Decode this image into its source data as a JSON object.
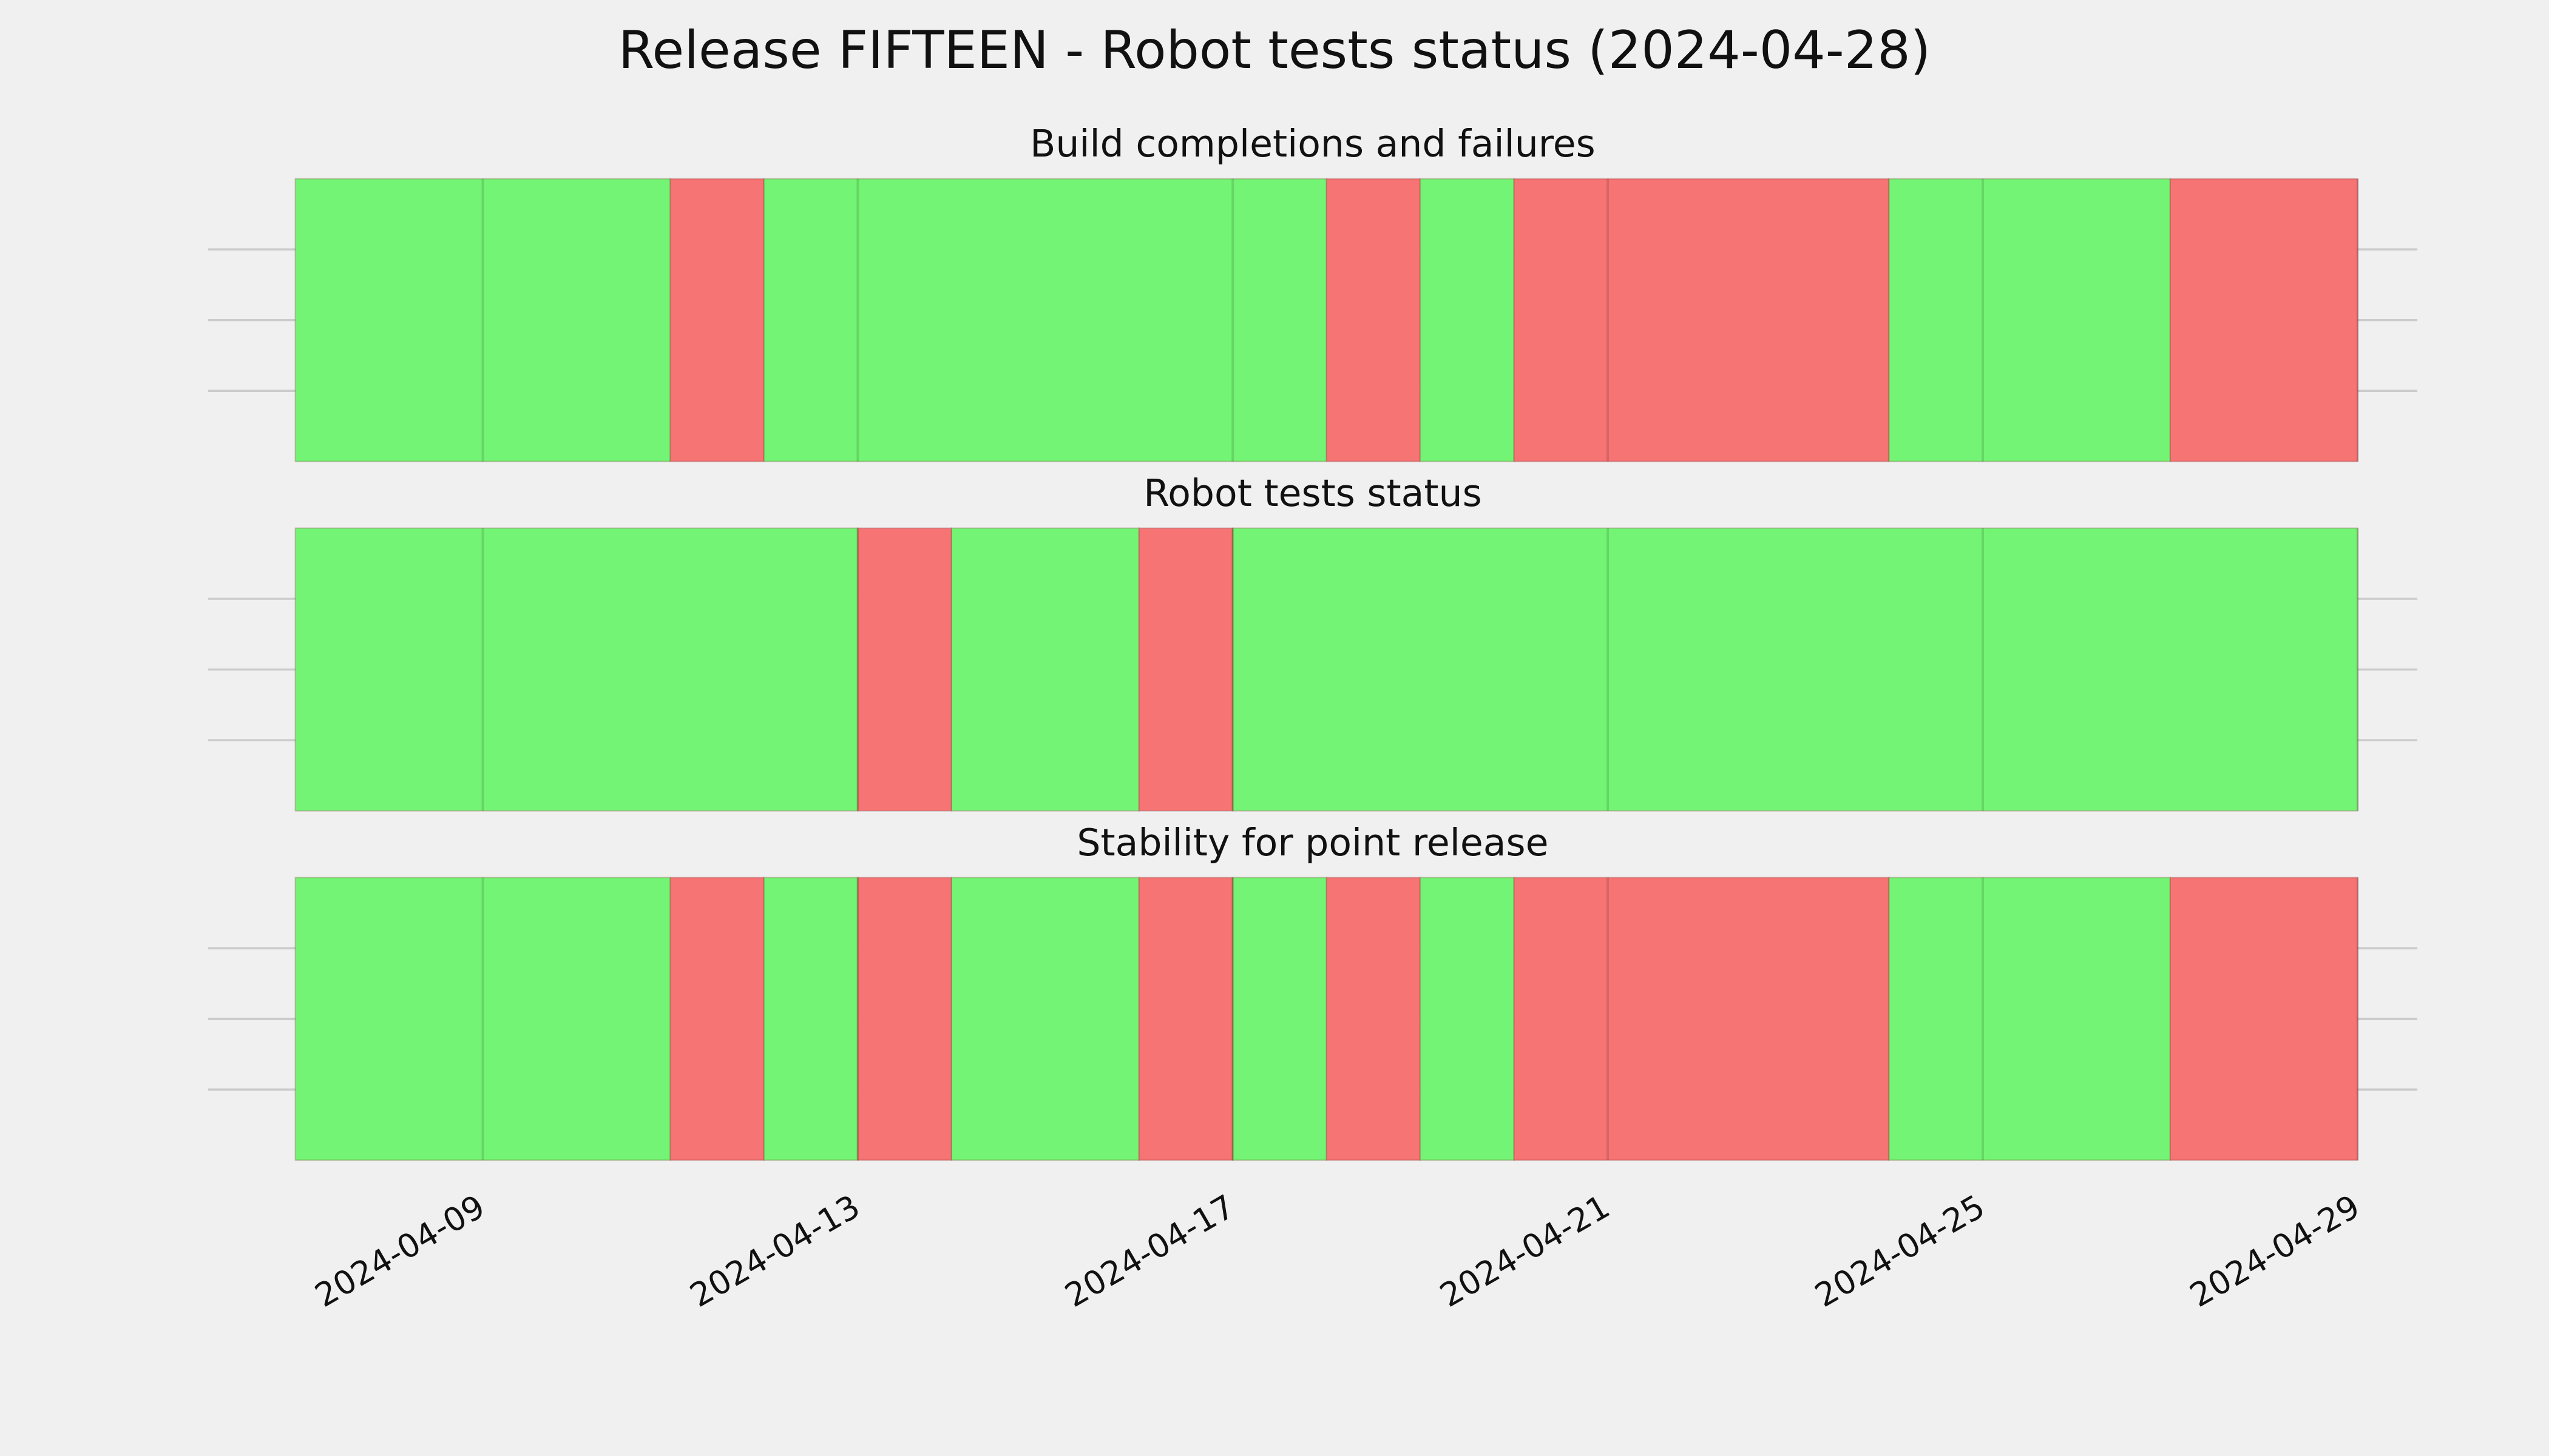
{
  "title": "Release FIFTEEN - Robot tests status (2024-04-28)",
  "chart_data": [
    {
      "type": "timeline",
      "title": "Build completions and failures",
      "x": [
        "2024-04-07",
        "2024-04-11",
        "2024-04-12",
        "2024-04-18",
        "2024-04-19",
        "2024-04-20",
        "2024-04-24",
        "2024-04-27",
        "2024-04-29"
      ],
      "colors": [
        "#74f474",
        "#f67474",
        "#74f474",
        "#f67474",
        "#74f474",
        "#f67474",
        "#74f474",
        "#f67474"
      ],
      "xlim": [
        "2024-04-06",
        "2024-04-30"
      ],
      "xticks": [
        "2024-04-09",
        "2024-04-13",
        "2024-04-17",
        "2024-04-21",
        "2024-04-25",
        "2024-04-29"
      ],
      "ylim": [
        0,
        1
      ],
      "yticks": [
        0.25,
        0.5,
        0.75
      ],
      "grid": true
    },
    {
      "type": "timeline",
      "title": "Robot tests status",
      "x": [
        "2024-04-07",
        "2024-04-13",
        "2024-04-14",
        "2024-04-16",
        "2024-04-17",
        "2024-04-29"
      ],
      "colors": [
        "#74f474",
        "#f67474",
        "#74f474",
        "#f67474",
        "#74f474"
      ],
      "xlim": [
        "2024-04-06",
        "2024-04-30"
      ],
      "xticks": [
        "2024-04-09",
        "2024-04-13",
        "2024-04-17",
        "2024-04-21",
        "2024-04-25",
        "2024-04-29"
      ],
      "ylim": [
        0,
        1
      ],
      "yticks": [
        0.25,
        0.5,
        0.75
      ],
      "grid": true
    },
    {
      "type": "timeline",
      "title": "Stability for point release",
      "x": [
        "2024-04-07",
        "2024-04-11",
        "2024-04-12",
        "2024-04-13",
        "2024-04-14",
        "2024-04-16",
        "2024-04-17",
        "2024-04-18",
        "2024-04-19",
        "2024-04-20",
        "2024-04-24",
        "2024-04-27",
        "2024-04-29"
      ],
      "colors": [
        "#74f474",
        "#f67474",
        "#74f474",
        "#f67474",
        "#74f474",
        "#f67474",
        "#74f474",
        "#f67474",
        "#74f474",
        "#f67474",
        "#74f474",
        "#f67474"
      ],
      "xlim": [
        "2024-04-06",
        "2024-04-30"
      ],
      "xticks": [
        "2024-04-09",
        "2024-04-13",
        "2024-04-17",
        "2024-04-21",
        "2024-04-25",
        "2024-04-29"
      ],
      "ylim": [
        0,
        1
      ],
      "yticks": [
        0.25,
        0.5,
        0.75
      ],
      "grid": true
    }
  ]
}
